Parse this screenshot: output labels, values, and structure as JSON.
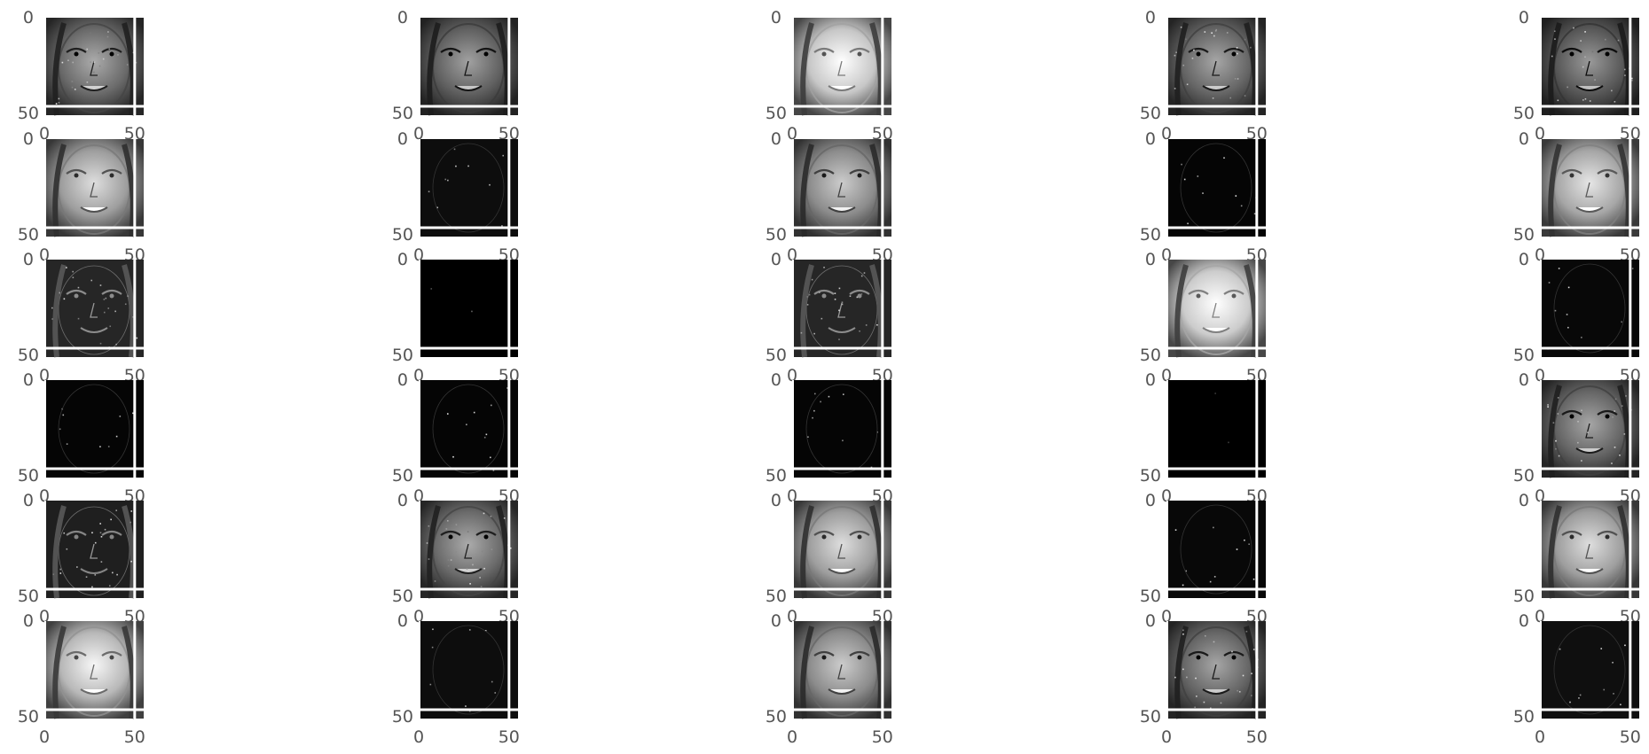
{
  "chart_data": {
    "type": "image-grid",
    "description": "Grid of 30 grayscale feature-map activations of a face image (6 rows x 5 columns), each shown on a small image axis",
    "rows": 6,
    "cols": 5,
    "axis": {
      "x_ticks": [
        "0",
        "50"
      ],
      "y_ticks": [
        "0",
        "50"
      ],
      "xlim": [
        0,
        50
      ],
      "ylim": [
        50,
        0
      ],
      "grid": true,
      "grid_color": "#ffffff"
    },
    "colormap": "gray",
    "colors": {
      "background": "#ffffff",
      "tick_text": "#555555"
    },
    "panels": [
      {
        "row": 0,
        "col": 0,
        "style": "edge-dark",
        "brightness": 0.42
      },
      {
        "row": 0,
        "col": 1,
        "style": "face-dark",
        "brightness": 0.38
      },
      {
        "row": 0,
        "col": 2,
        "style": "face-light",
        "brightness": 0.78
      },
      {
        "row": 0,
        "col": 3,
        "style": "edge-dark",
        "brightness": 0.4
      },
      {
        "row": 0,
        "col": 4,
        "style": "edge-dark",
        "brightness": 0.35
      },
      {
        "row": 1,
        "col": 0,
        "style": "face",
        "brightness": 0.62
      },
      {
        "row": 1,
        "col": 1,
        "style": "sparse",
        "brightness": 0.05
      },
      {
        "row": 1,
        "col": 2,
        "style": "face",
        "brightness": 0.55
      },
      {
        "row": 1,
        "col": 3,
        "style": "sparse",
        "brightness": 0.02
      },
      {
        "row": 1,
        "col": 4,
        "style": "face",
        "brightness": 0.65
      },
      {
        "row": 2,
        "col": 0,
        "style": "edge-black",
        "brightness": 0.15
      },
      {
        "row": 2,
        "col": 1,
        "style": "black",
        "brightness": 0.0
      },
      {
        "row": 2,
        "col": 2,
        "style": "edge-black",
        "brightness": 0.15
      },
      {
        "row": 2,
        "col": 3,
        "style": "face-light",
        "brightness": 0.8
      },
      {
        "row": 2,
        "col": 4,
        "style": "sparse",
        "brightness": 0.03
      },
      {
        "row": 3,
        "col": 0,
        "style": "sparse",
        "brightness": 0.02
      },
      {
        "row": 3,
        "col": 1,
        "style": "sparse",
        "brightness": 0.02
      },
      {
        "row": 3,
        "col": 2,
        "style": "sparse",
        "brightness": 0.02
      },
      {
        "row": 3,
        "col": 3,
        "style": "black",
        "brightness": 0.0
      },
      {
        "row": 3,
        "col": 4,
        "style": "edge-dark",
        "brightness": 0.4
      },
      {
        "row": 4,
        "col": 0,
        "style": "edge-black",
        "brightness": 0.12
      },
      {
        "row": 4,
        "col": 1,
        "style": "edge-dark",
        "brightness": 0.42
      },
      {
        "row": 4,
        "col": 2,
        "style": "face",
        "brightness": 0.62
      },
      {
        "row": 4,
        "col": 3,
        "style": "sparse",
        "brightness": 0.03
      },
      {
        "row": 4,
        "col": 4,
        "style": "face",
        "brightness": 0.62
      },
      {
        "row": 5,
        "col": 0,
        "style": "face-light",
        "brightness": 0.72
      },
      {
        "row": 5,
        "col": 1,
        "style": "sparse",
        "brightness": 0.05
      },
      {
        "row": 5,
        "col": 2,
        "style": "face",
        "brightness": 0.55
      },
      {
        "row": 5,
        "col": 3,
        "style": "edge-dark",
        "brightness": 0.4
      },
      {
        "row": 5,
        "col": 4,
        "style": "sparse",
        "brightness": 0.06
      }
    ]
  }
}
